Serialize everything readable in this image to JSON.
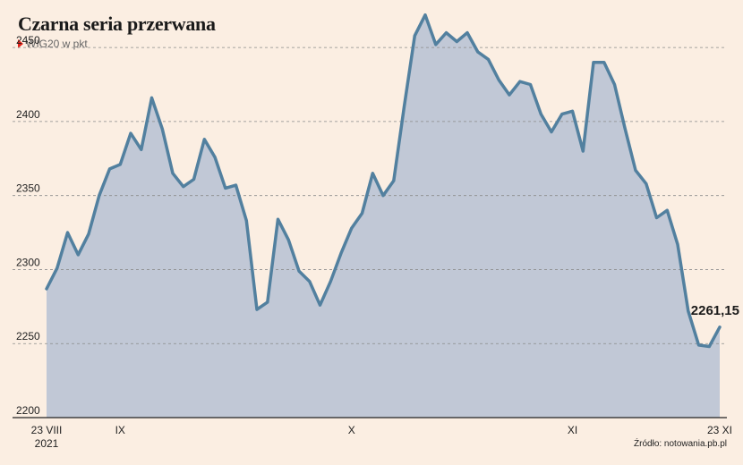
{
  "header": {
    "title": "Czarna seria przerwana",
    "subtitle": "WIG20 w pkt"
  },
  "source": "Źródło: notowania.pb.pl",
  "colors": {
    "background": "#fbeee2",
    "line": "#52809f",
    "area": "#c1c8d6",
    "subtitle_marker": "#e2231a"
  },
  "chart_data": {
    "type": "area",
    "title": "Czarna seria przerwana",
    "ylabel": "WIG20 w pkt",
    "ylim": [
      2200,
      2470
    ],
    "yticks": [
      2200,
      2250,
      2300,
      2350,
      2400,
      2450
    ],
    "ytick_labels": [
      "2200",
      "2250",
      "2300",
      "2350",
      "2400",
      "2450"
    ],
    "grid": true,
    "x_tick_labels": [
      {
        "label": "23 VIII",
        "sub": "2021",
        "index": 0
      },
      {
        "label": "IX",
        "index": 7
      },
      {
        "label": "X",
        "index": 29
      },
      {
        "label": "XI",
        "index": 50
      },
      {
        "label": "23 XI",
        "index": 64
      }
    ],
    "last_value_label": "2261,15",
    "values": [
      2287,
      2301,
      2325,
      2310,
      2324,
      2350,
      2368,
      2371,
      2392,
      2381,
      2416,
      2395,
      2365,
      2356,
      2361,
      2388,
      2376,
      2355,
      2357,
      2333,
      2273,
      2278,
      2334,
      2320,
      2299,
      2292,
      2276,
      2292,
      2311,
      2328,
      2338,
      2365,
      2350,
      2360,
      2410,
      2458,
      2472,
      2452,
      2460,
      2454,
      2460,
      2447,
      2442,
      2428,
      2418,
      2427,
      2425,
      2405,
      2393,
      2405,
      2407,
      2380,
      2440,
      2440,
      2425,
      2395,
      2367,
      2358,
      2335,
      2340,
      2317,
      2272,
      2249,
      2248,
      2261.15
    ]
  }
}
